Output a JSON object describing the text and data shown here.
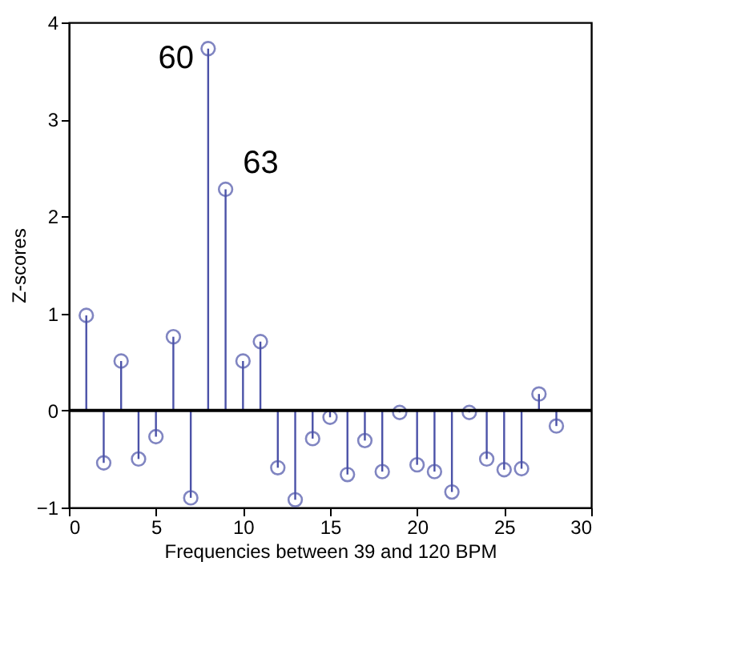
{
  "chart_data": {
    "type": "lollipop",
    "xlabel": "Frequencies between 39 and 120 BPM",
    "ylabel": "Z-scores",
    "x": [
      1,
      2,
      3,
      4,
      5,
      6,
      7,
      8,
      9,
      10,
      11,
      12,
      13,
      14,
      15,
      16,
      17,
      18,
      19,
      20,
      21,
      22,
      23,
      24,
      25,
      26,
      27,
      28
    ],
    "series": [
      {
        "color": "#4b52a8",
        "values": [
          0.98,
          -0.54,
          0.51,
          -0.5,
          -0.27,
          0.76,
          -0.9,
          3.73,
          2.28,
          0.51,
          0.71,
          -0.59,
          -0.92,
          -0.29,
          -0.07,
          -0.66,
          -0.31,
          -0.63,
          -0.02,
          -0.56,
          -0.63,
          -0.84,
          -0.02,
          -0.5,
          -0.61,
          -0.6,
          0.17,
          -0.16
        ]
      }
    ],
    "annotations": [
      {
        "text": "60",
        "x": 8,
        "y": 3.73
      },
      {
        "text": "63",
        "x": 9,
        "y": 2.28
      }
    ],
    "ref_lines": [
      {
        "axis": "y",
        "value": 0,
        "color": "#000000"
      }
    ],
    "xlim": [
      0,
      30
    ],
    "xticks": [
      0,
      5,
      10,
      15,
      20,
      25,
      30
    ],
    "ylim": [
      -1,
      4
    ],
    "yticks": [
      -1,
      0,
      1,
      2,
      3,
      4
    ],
    "marker": "circle",
    "grid": false
  }
}
